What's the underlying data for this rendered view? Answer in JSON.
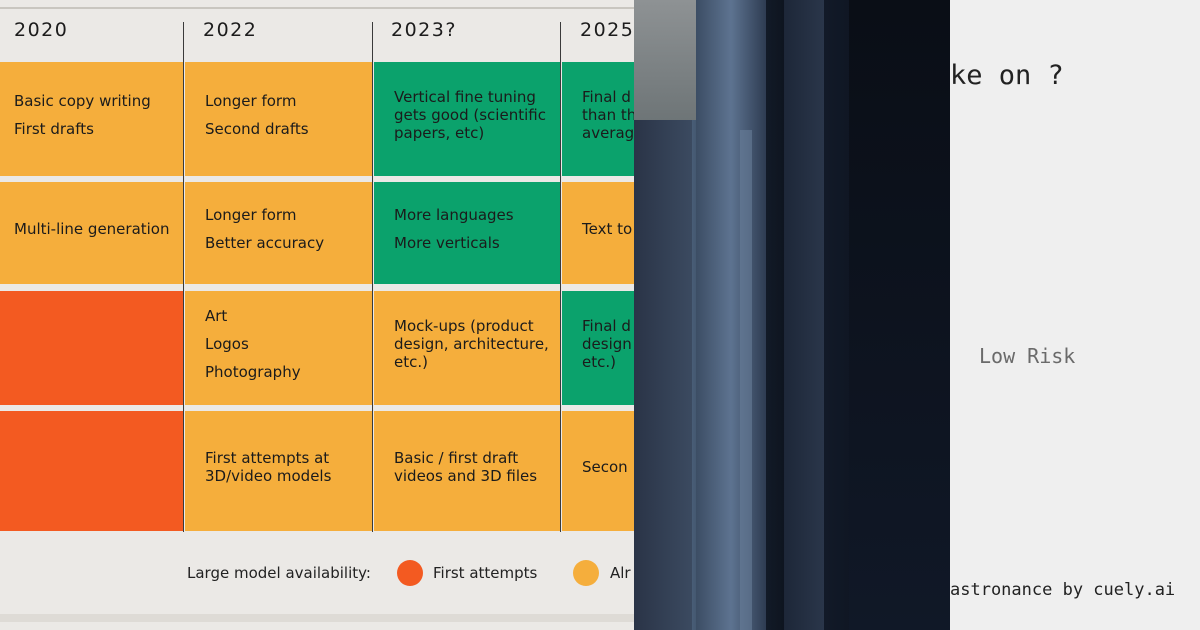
{
  "timeline": {
    "years": [
      "2020",
      "2022",
      "2023?",
      "2025"
    ],
    "rows": [
      {
        "cells": [
          {
            "lines": [
              "Basic copy writing",
              "First drafts"
            ],
            "color": "#f5ae3c"
          },
          {
            "lines": [
              "Longer form",
              "Second drafts"
            ],
            "color": "#f5ae3c"
          },
          {
            "lines": [
              "Vertical fine tuning",
              "gets good (scientific",
              "papers, etc)"
            ],
            "color": "#0ba26c"
          },
          {
            "lines": [
              "Final d",
              "than th",
              "averag"
            ],
            "color": "#0ba26c"
          }
        ]
      },
      {
        "cells": [
          {
            "lines": [
              "Multi-line generation"
            ],
            "color": "#f5ae3c"
          },
          {
            "lines": [
              "Longer form",
              "Better accuracy"
            ],
            "color": "#f5ae3c"
          },
          {
            "lines": [
              "More languages",
              "More verticals"
            ],
            "color": "#0ba26c"
          },
          {
            "lines": [
              "Text to"
            ],
            "color": "#f5ae3c"
          }
        ]
      },
      {
        "cells": [
          {
            "lines": [],
            "color": "#f35a21"
          },
          {
            "lines": [
              "Art",
              "Logos",
              "Photography"
            ],
            "color": "#f5ae3c"
          },
          {
            "lines": [
              "Mock-ups (product",
              "design, architecture,",
              "etc.)"
            ],
            "color": "#f5ae3c"
          },
          {
            "lines": [
              "Final d",
              "design",
              "etc.)"
            ],
            "color": "#0ba26c"
          }
        ]
      },
      {
        "cells": [
          {
            "lines": [],
            "color": "#f35a21"
          },
          {
            "lines": [
              "First attempts at",
              "3D/video models"
            ],
            "color": "#f5ae3c"
          },
          {
            "lines": [
              "Basic / first draft",
              "videos and 3D files"
            ],
            "color": "#f5ae3c"
          },
          {
            "lines": [
              "Secon"
            ],
            "color": "#f5ae3c"
          }
        ]
      }
    ],
    "legend": {
      "label": "Large model availability:",
      "items": [
        {
          "label": "First attempts",
          "color": "#f35a21"
        },
        {
          "label": "Alr",
          "color": "#f5ae3c"
        }
      ]
    }
  },
  "note": {
    "question": "ke on ?",
    "risk": "Low Risk",
    "credit": "astronance by cuely.ai"
  }
}
